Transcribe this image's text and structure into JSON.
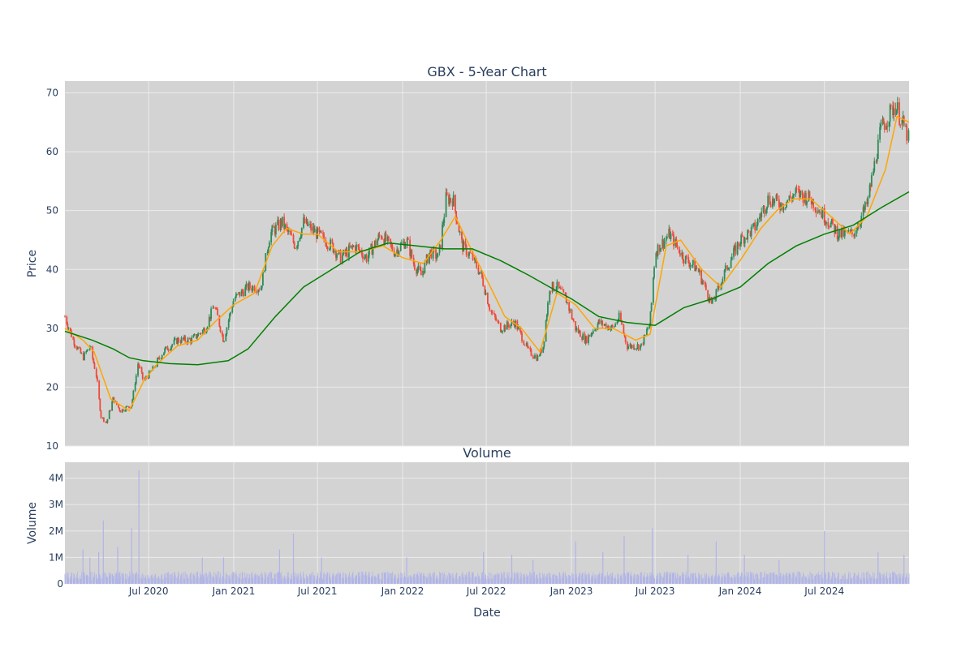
{
  "colors": {
    "plot_bg": "#d3d3d3",
    "grid": "#ebebeb",
    "text": "#2a3f5f",
    "candle_up": "#2e8b57",
    "candle_down": "#ef4b3a",
    "ma_short": "#ffa500",
    "ma_long": "#008000",
    "volume_bar": "#b0b4e8"
  },
  "chart_data": [
    {
      "type": "candlestick",
      "title": "GBX - 5-Year Chart",
      "xlabel": "",
      "ylabel": "Price",
      "xrange": [
        "2020-01-02",
        "2024-12-31"
      ],
      "ylim": [
        10,
        72
      ],
      "yticks": [
        10,
        20,
        30,
        40,
        50,
        60,
        70
      ],
      "xticks": [
        {
          "date": "2020-07-01",
          "label": "Jul 2020"
        },
        {
          "date": "2021-01-01",
          "label": "Jan 2021"
        },
        {
          "date": "2021-07-01",
          "label": "Jul 2021"
        },
        {
          "date": "2022-01-01",
          "label": "Jan 2022"
        },
        {
          "date": "2022-07-01",
          "label": "Jul 2022"
        },
        {
          "date": "2023-01-01",
          "label": "Jan 2023"
        },
        {
          "date": "2023-07-01",
          "label": "Jul 2023"
        },
        {
          "date": "2024-01-01",
          "label": "Jan 2024"
        },
        {
          "date": "2024-07-01",
          "label": "Jul 2024"
        }
      ],
      "grid": true,
      "price_path": [
        [
          "2020-01-02",
          32
        ],
        [
          "2020-01-20",
          28
        ],
        [
          "2020-02-10",
          25
        ],
        [
          "2020-02-25",
          27
        ],
        [
          "2020-03-10",
          22
        ],
        [
          "2020-03-20",
          15
        ],
        [
          "2020-04-01",
          14
        ],
        [
          "2020-04-15",
          18
        ],
        [
          "2020-05-01",
          16
        ],
        [
          "2020-05-25",
          17
        ],
        [
          "2020-06-08",
          24
        ],
        [
          "2020-06-20",
          21
        ],
        [
          "2020-07-10",
          23
        ],
        [
          "2020-08-01",
          26
        ],
        [
          "2020-09-01",
          28
        ],
        [
          "2020-10-01",
          28
        ],
        [
          "2020-11-01",
          30
        ],
        [
          "2020-11-20",
          34
        ],
        [
          "2020-12-10",
          28
        ],
        [
          "2021-01-01",
          35
        ],
        [
          "2021-02-01",
          37
        ],
        [
          "2021-03-01",
          37
        ],
        [
          "2021-03-20",
          46
        ],
        [
          "2021-04-15",
          48
        ],
        [
          "2021-05-15",
          44
        ],
        [
          "2021-06-01",
          48
        ],
        [
          "2021-07-01",
          46
        ],
        [
          "2021-08-01",
          44
        ],
        [
          "2021-08-20",
          42
        ],
        [
          "2021-09-20",
          44
        ],
        [
          "2021-10-15",
          42
        ],
        [
          "2021-11-15",
          46
        ],
        [
          "2021-12-15",
          43
        ],
        [
          "2022-01-10",
          45
        ],
        [
          "2022-01-25",
          41
        ],
        [
          "2022-02-10",
          39
        ],
        [
          "2022-03-01",
          43
        ],
        [
          "2022-03-20",
          42
        ],
        [
          "2022-04-05",
          52
        ],
        [
          "2022-04-20",
          52
        ],
        [
          "2022-05-10",
          44
        ],
        [
          "2022-06-01",
          42
        ],
        [
          "2022-06-20",
          39
        ],
        [
          "2022-07-10",
          33
        ],
        [
          "2022-08-01",
          30
        ],
        [
          "2022-09-01",
          31
        ],
        [
          "2022-10-01",
          26
        ],
        [
          "2022-10-20",
          25
        ],
        [
          "2022-11-01",
          27
        ],
        [
          "2022-11-15",
          37
        ],
        [
          "2022-12-01",
          37
        ],
        [
          "2022-12-20",
          35
        ],
        [
          "2023-01-10",
          30
        ],
        [
          "2023-02-01",
          28
        ],
        [
          "2023-03-01",
          31
        ],
        [
          "2023-04-01",
          30
        ],
        [
          "2023-04-15",
          32
        ],
        [
          "2023-05-01",
          27
        ],
        [
          "2023-06-01",
          27
        ],
        [
          "2023-06-20",
          31
        ],
        [
          "2023-07-01",
          43
        ],
        [
          "2023-08-01",
          46
        ],
        [
          "2023-09-01",
          42
        ],
        [
          "2023-10-01",
          40
        ],
        [
          "2023-11-01",
          34
        ],
        [
          "2023-12-01",
          40
        ],
        [
          "2024-01-01",
          45
        ],
        [
          "2024-02-01",
          47
        ],
        [
          "2024-03-01",
          52
        ],
        [
          "2024-04-01",
          51
        ],
        [
          "2024-05-01",
          53
        ],
        [
          "2024-06-01",
          52
        ],
        [
          "2024-07-01",
          49
        ],
        [
          "2024-08-01",
          46
        ],
        [
          "2024-09-01",
          46
        ],
        [
          "2024-10-01",
          51
        ],
        [
          "2024-11-01",
          64
        ],
        [
          "2024-12-01",
          68
        ],
        [
          "2024-12-31",
          62
        ]
      ],
      "series": [
        {
          "name": "",
          "style": "ma_short",
          "points": [
            [
              "2020-01-02",
              30
            ],
            [
              "2020-02-10",
              28
            ],
            [
              "2020-03-05",
              26
            ],
            [
              "2020-04-10",
              18
            ],
            [
              "2020-05-20",
              16
            ],
            [
              "2020-06-20",
              21
            ],
            [
              "2020-07-20",
              24
            ],
            [
              "2020-09-01",
              27
            ],
            [
              "2020-10-15",
              28
            ],
            [
              "2020-11-20",
              31
            ],
            [
              "2021-01-01",
              34
            ],
            [
              "2021-02-15",
              36
            ],
            [
              "2021-03-25",
              44
            ],
            [
              "2021-04-25",
              47
            ],
            [
              "2021-06-01",
              46
            ],
            [
              "2021-07-01",
              46
            ],
            [
              "2021-08-15",
              43
            ],
            [
              "2021-10-01",
              43
            ],
            [
              "2021-11-20",
              44
            ],
            [
              "2022-01-01",
              42
            ],
            [
              "2022-02-15",
              41
            ],
            [
              "2022-03-25",
              45
            ],
            [
              "2022-04-25",
              49
            ],
            [
              "2022-06-01",
              43
            ],
            [
              "2022-07-10",
              37
            ],
            [
              "2022-08-10",
              32
            ],
            [
              "2022-09-15",
              30
            ],
            [
              "2022-10-25",
              26
            ],
            [
              "2022-12-01",
              36
            ],
            [
              "2023-01-10",
              34
            ],
            [
              "2023-02-20",
              30
            ],
            [
              "2023-04-01",
              30
            ],
            [
              "2023-05-20",
              28
            ],
            [
              "2023-06-20",
              29
            ],
            [
              "2023-07-25",
              44
            ],
            [
              "2023-08-25",
              45
            ],
            [
              "2023-10-10",
              40
            ],
            [
              "2023-11-20",
              37
            ],
            [
              "2024-01-05",
              42
            ],
            [
              "2024-02-15",
              47
            ],
            [
              "2024-03-20",
              50
            ],
            [
              "2024-04-25",
              52
            ],
            [
              "2024-06-01",
              52
            ],
            [
              "2024-07-15",
              49
            ],
            [
              "2024-08-25",
              46
            ],
            [
              "2024-10-01",
              49
            ],
            [
              "2024-11-10",
              57
            ],
            [
              "2024-12-05",
              66
            ],
            [
              "2024-12-31",
              65
            ]
          ]
        },
        {
          "name": "",
          "style": "ma_long",
          "points": [
            [
              "2020-01-02",
              29.5
            ],
            [
              "2020-03-01",
              28
            ],
            [
              "2020-04-15",
              26.5
            ],
            [
              "2020-05-20",
              25
            ],
            [
              "2020-06-20",
              24.5
            ],
            [
              "2020-08-15",
              24
            ],
            [
              "2020-10-15",
              23.8
            ],
            [
              "2020-12-20",
              24.5
            ],
            [
              "2021-02-01",
              26.5
            ],
            [
              "2021-04-01",
              32
            ],
            [
              "2021-06-01",
              37
            ],
            [
              "2021-08-01",
              40
            ],
            [
              "2021-10-01",
              43
            ],
            [
              "2021-12-01",
              44.5
            ],
            [
              "2022-02-01",
              44
            ],
            [
              "2022-04-01",
              43.5
            ],
            [
              "2022-06-01",
              43.5
            ],
            [
              "2022-08-01",
              41.5
            ],
            [
              "2022-10-01",
              39
            ],
            [
              "2022-11-15",
              37
            ],
            [
              "2023-01-01",
              35
            ],
            [
              "2023-03-01",
              32
            ],
            [
              "2023-05-01",
              31
            ],
            [
              "2023-07-01",
              30.5
            ],
            [
              "2023-09-01",
              33.5
            ],
            [
              "2023-11-01",
              35
            ],
            [
              "2024-01-01",
              37
            ],
            [
              "2024-03-01",
              41
            ],
            [
              "2024-05-01",
              44
            ],
            [
              "2024-07-01",
              46
            ],
            [
              "2024-09-01",
              47.5
            ],
            [
              "2024-11-01",
              50.5
            ],
            [
              "2024-12-31",
              53.2
            ]
          ]
        }
      ]
    },
    {
      "type": "bar",
      "title": "Volume",
      "xlabel": "Date",
      "ylabel": "Volume",
      "ylim": [
        0,
        4600000
      ],
      "yticks": [
        {
          "value": 0,
          "label": "0"
        },
        {
          "value": 1000000,
          "label": "1M"
        },
        {
          "value": 2000000,
          "label": "2M"
        },
        {
          "value": 3000000,
          "label": "3M"
        },
        {
          "value": 4000000,
          "label": "4M"
        }
      ],
      "grid": true,
      "typical_volume": 350000,
      "spikes": [
        [
          "2020-02-10",
          1300000
        ],
        [
          "2020-02-25",
          1000000
        ],
        [
          "2020-03-15",
          1200000
        ],
        [
          "2020-03-25",
          2400000
        ],
        [
          "2020-04-25",
          1400000
        ],
        [
          "2020-05-25",
          2100000
        ],
        [
          "2020-06-10",
          4300000
        ],
        [
          "2020-10-25",
          1000000
        ],
        [
          "2020-12-10",
          1000000
        ],
        [
          "2021-04-10",
          1300000
        ],
        [
          "2021-05-10",
          1900000
        ],
        [
          "2021-07-10",
          1000000
        ],
        [
          "2022-01-10",
          1000000
        ],
        [
          "2022-06-25",
          1200000
        ],
        [
          "2022-08-25",
          1100000
        ],
        [
          "2022-10-10",
          900000
        ],
        [
          "2023-01-10",
          1600000
        ],
        [
          "2023-03-10",
          1200000
        ],
        [
          "2023-04-25",
          1800000
        ],
        [
          "2023-06-25",
          2100000
        ],
        [
          "2023-09-10",
          1100000
        ],
        [
          "2023-11-10",
          1600000
        ],
        [
          "2024-01-10",
          1100000
        ],
        [
          "2024-03-25",
          900000
        ],
        [
          "2024-07-01",
          2000000
        ],
        [
          "2024-10-25",
          1200000
        ],
        [
          "2024-12-20",
          1100000
        ]
      ]
    }
  ]
}
